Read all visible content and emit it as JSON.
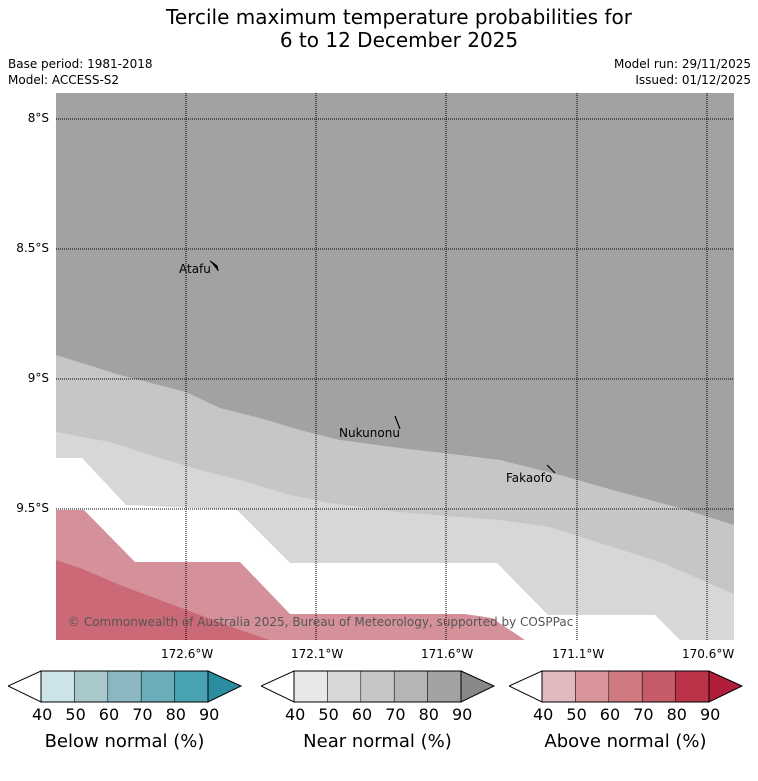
{
  "title": {
    "line1": "Tercile maximum temperature probabilities for",
    "line2": "6 to 12 December 2025"
  },
  "meta": {
    "base_period": "Base period: 1981-2018",
    "model": "Model: ACCESS-S2",
    "model_run": "Model run: 29/11/2025",
    "issued": "Issued: 01/12/2025"
  },
  "map": {
    "lat_labels": [
      "8°S",
      "8.5°S",
      "9°S",
      "9.5°S"
    ],
    "lon_labels": [
      "172.6°W",
      "172.1°W",
      "171.6°W",
      "171.1°W",
      "170.6°W"
    ],
    "places": [
      "Atafu",
      "Nukunonu",
      "Fakaofo"
    ],
    "copyright": "© Commonwealth of Australia 2025, Bureau of Meteorology, supported by COSPPac"
  },
  "legends": [
    {
      "title": "Below normal (%)",
      "ticks": [
        "40",
        "50",
        "60",
        "70",
        "80",
        "90"
      ],
      "colors": [
        "#cce3e8",
        "#a8c8cc",
        "#8ab7c1",
        "#6aaeba",
        "#48a2b2",
        "#2a8ea0"
      ]
    },
    {
      "title": "Near normal (%)",
      "ticks": [
        "40",
        "50",
        "60",
        "70",
        "80",
        "90"
      ],
      "colors": [
        "#e8e8e8",
        "#d7d7d7",
        "#c6c6c6",
        "#b5b5b5",
        "#a2a2a2",
        "#888888"
      ]
    },
    {
      "title": "Above normal (%)",
      "ticks": [
        "40",
        "50",
        "60",
        "70",
        "80",
        "90"
      ],
      "colors": [
        "#e1b8bd",
        "#d9959c",
        "#cf7a81",
        "#c55b68",
        "#bb3349",
        "#b01e3b"
      ]
    }
  ]
}
